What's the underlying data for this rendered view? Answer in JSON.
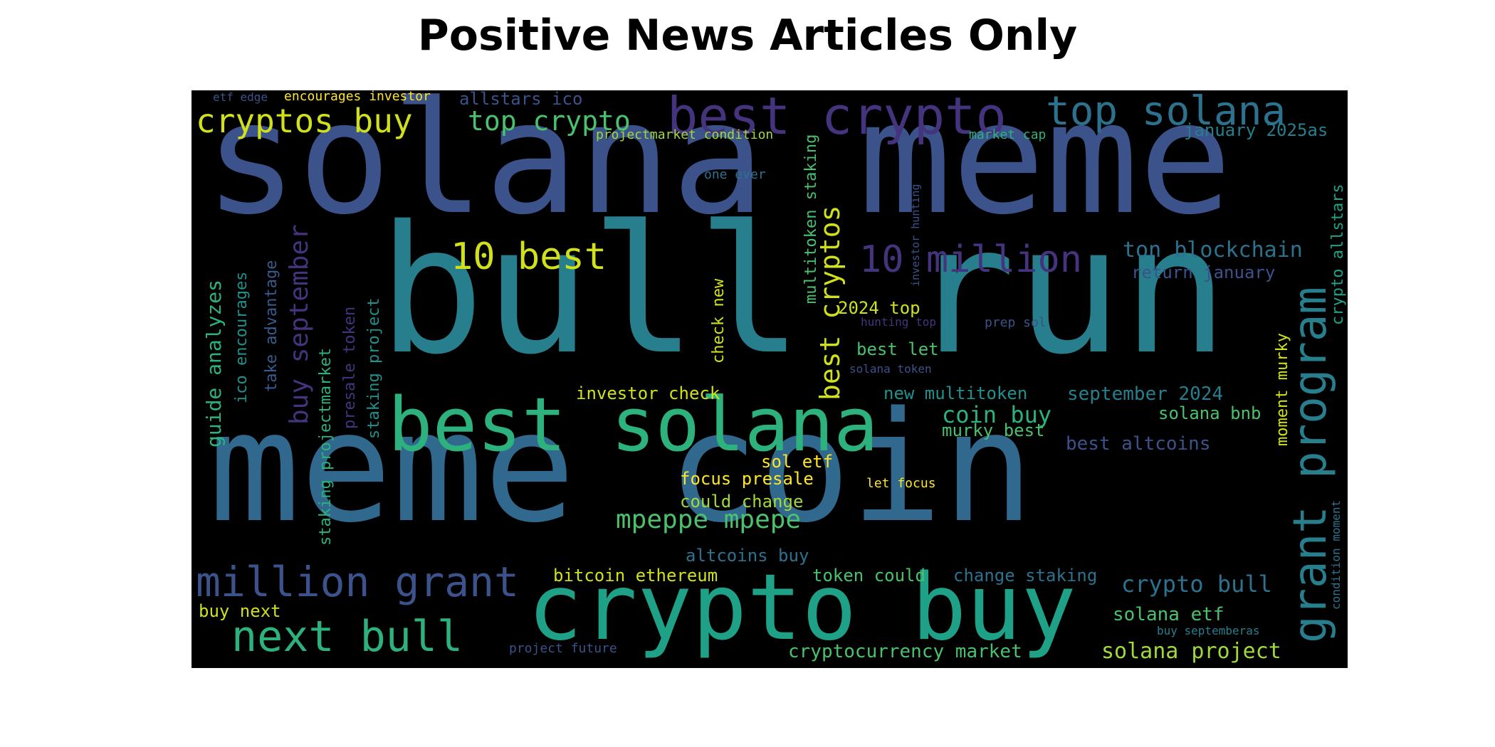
{
  "title": "Positive News Articles Only",
  "words": {
    "solana_meme": "solana meme",
    "bull_run": "bull run",
    "meme_coin": "meme coin",
    "crypto_buy": "crypto buy",
    "best_solana": "best solana",
    "best_crypto": "best crypto",
    "top_solana": "top solana",
    "cryptos_buy": "cryptos buy",
    "top_crypto": "top crypto",
    "million_grant": "million grant",
    "next_bull": "next bull",
    "ten_best": "10 best",
    "ten_million": "10 million",
    "grant_program": "grant program",
    "best_cryptos": "best cryptos",
    "mpeppe_mpepe": "mpeppe mpepe",
    "ton_blockchain": "ton blockchain",
    "return_january": "return january",
    "crypto_allstars": "crypto allstars",
    "crypto_bull": "crypto bull",
    "solana_etf": "solana etf",
    "solana_project": "solana project",
    "cryptocurrency_market": "cryptocurrency market",
    "etf_edge": "etf edge",
    "encourages_investor": "encourages investor",
    "allstars_ico": "allstars ico",
    "projectmarket_condition": "projectmarket condition",
    "market_cap": "market cap",
    "january_2025as": "january 2025as",
    "one_ever": "one ever",
    "investor_hunting": "investor hunting",
    "multitoken_staking": "multitoken staking",
    "guide_analyzes": "guide analyzes",
    "ico_encourages": "ico encourages",
    "take_advantage": "take advantage",
    "buy_september": "buy september",
    "staking_projectmarket": "staking projectmarket",
    "presale_token": "presale token",
    "staking_project": "staking project",
    "check_new": "check new",
    "top_2024": "2024 top",
    "hunting_top": "hunting top",
    "prep_sol": "prep sol",
    "best_let": "best let",
    "solana_token": "solana token",
    "investor_check": "investor check",
    "new_multitoken": "new multitoken",
    "september_2024": "september 2024",
    "coin_buy": "coin buy",
    "solana_bnb": "solana bnb",
    "murky_best": "murky best",
    "best_altcoins": "best altcoins",
    "moment_murky": "moment murky",
    "sol_etf": "sol etf",
    "focus_presale": "focus presale",
    "let_focus": "let focus",
    "could_change": "could change",
    "altcoins_buy": "altcoins buy",
    "bitcoin_ethereum": "bitcoin ethereum",
    "token_could": "token could",
    "change_staking": "change staking",
    "buy_next": "buy next",
    "condition_moment": "condition moment",
    "buy_septemberas": "buy septemberas",
    "project_future": "project future"
  },
  "colors": {
    "dark_purple": "#46337e",
    "indigo": "#3b528b",
    "slate_blue": "#365c8d",
    "steel_blue": "#2c728e",
    "teal": "#277f8e",
    "teal_green": "#21918c",
    "green": "#1fa187",
    "bright_green": "#2db27d",
    "light_green": "#4ac16d",
    "lime": "#a0da39",
    "yellow": "#fde725",
    "gold": "#d0e11c"
  }
}
